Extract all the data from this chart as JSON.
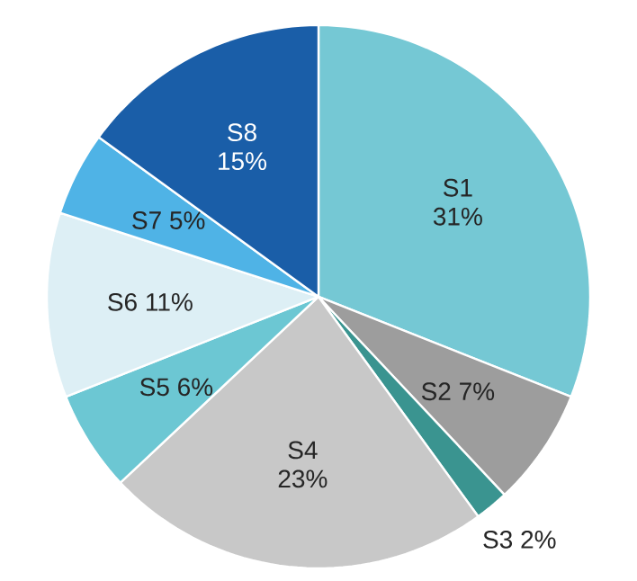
{
  "chart_data": {
    "type": "pie",
    "categories": [
      "S1",
      "S2",
      "S3",
      "S4",
      "S5",
      "S6",
      "S7",
      "S8"
    ],
    "values": [
      31,
      7,
      2,
      23,
      6,
      11,
      5,
      15
    ],
    "value_labels": [
      "31%",
      "7%",
      "2%",
      "23%",
      "6%",
      "11%",
      "5%",
      "15%"
    ],
    "colors": [
      "#75c8d4",
      "#9d9d9d",
      "#3a9490",
      "#c8c8c8",
      "#6cc7d3",
      "#ddeff5",
      "#4fb3e6",
      "#1a5ea8"
    ]
  }
}
